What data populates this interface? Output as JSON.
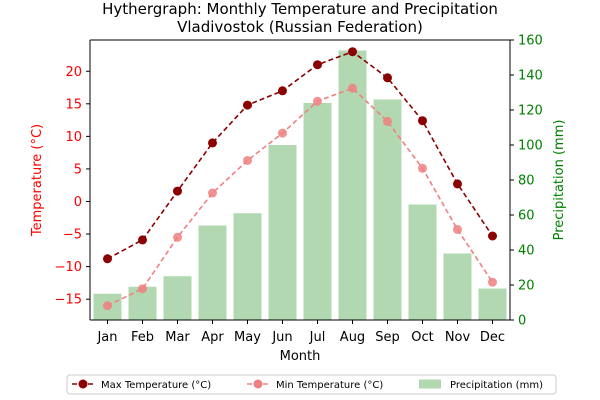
{
  "chart_data": {
    "type": "bar+line",
    "title": "Hythergraph: Monthly Temperature and Precipitation",
    "subtitle": "Vladivostok (Russian Federation)",
    "xlabel": "Month",
    "ylabel_left": "Temperature (°C)",
    "ylabel_right": "Precipitation (mm)",
    "categories": [
      "Jan",
      "Feb",
      "Mar",
      "Apr",
      "May",
      "Jun",
      "Jul",
      "Aug",
      "Sep",
      "Oct",
      "Nov",
      "Dec"
    ],
    "ylim_left": [
      -18.2,
      24.8
    ],
    "yticks_left": [
      -15,
      -10,
      -5,
      0,
      5,
      10,
      15,
      20
    ],
    "ylim_right": [
      0,
      160
    ],
    "yticks_right": [
      0,
      20,
      40,
      60,
      80,
      100,
      120,
      140,
      160
    ],
    "grid": false,
    "legend_position": "bottom-center",
    "series": [
      {
        "name": "Max Temperature (°C)",
        "kind": "line",
        "axis": "left",
        "color": "#8b0000",
        "values": [
          -8.8,
          -5.9,
          1.6,
          9.0,
          14.8,
          17.0,
          21.0,
          23.0,
          19.0,
          12.4,
          2.7,
          -5.3
        ]
      },
      {
        "name": "Min Temperature (°C)",
        "kind": "line",
        "axis": "left",
        "color": "#f08080",
        "values": [
          -16.0,
          -13.4,
          -5.5,
          1.3,
          6.3,
          10.5,
          15.4,
          17.4,
          12.3,
          5.1,
          -4.3,
          -12.4
        ]
      },
      {
        "name": "Precipitation (mm)",
        "kind": "bar",
        "axis": "right",
        "color": "#b2d8b2",
        "values": [
          15,
          19,
          25,
          54,
          61,
          100,
          124,
          154,
          126,
          66,
          38,
          18
        ]
      }
    ]
  }
}
